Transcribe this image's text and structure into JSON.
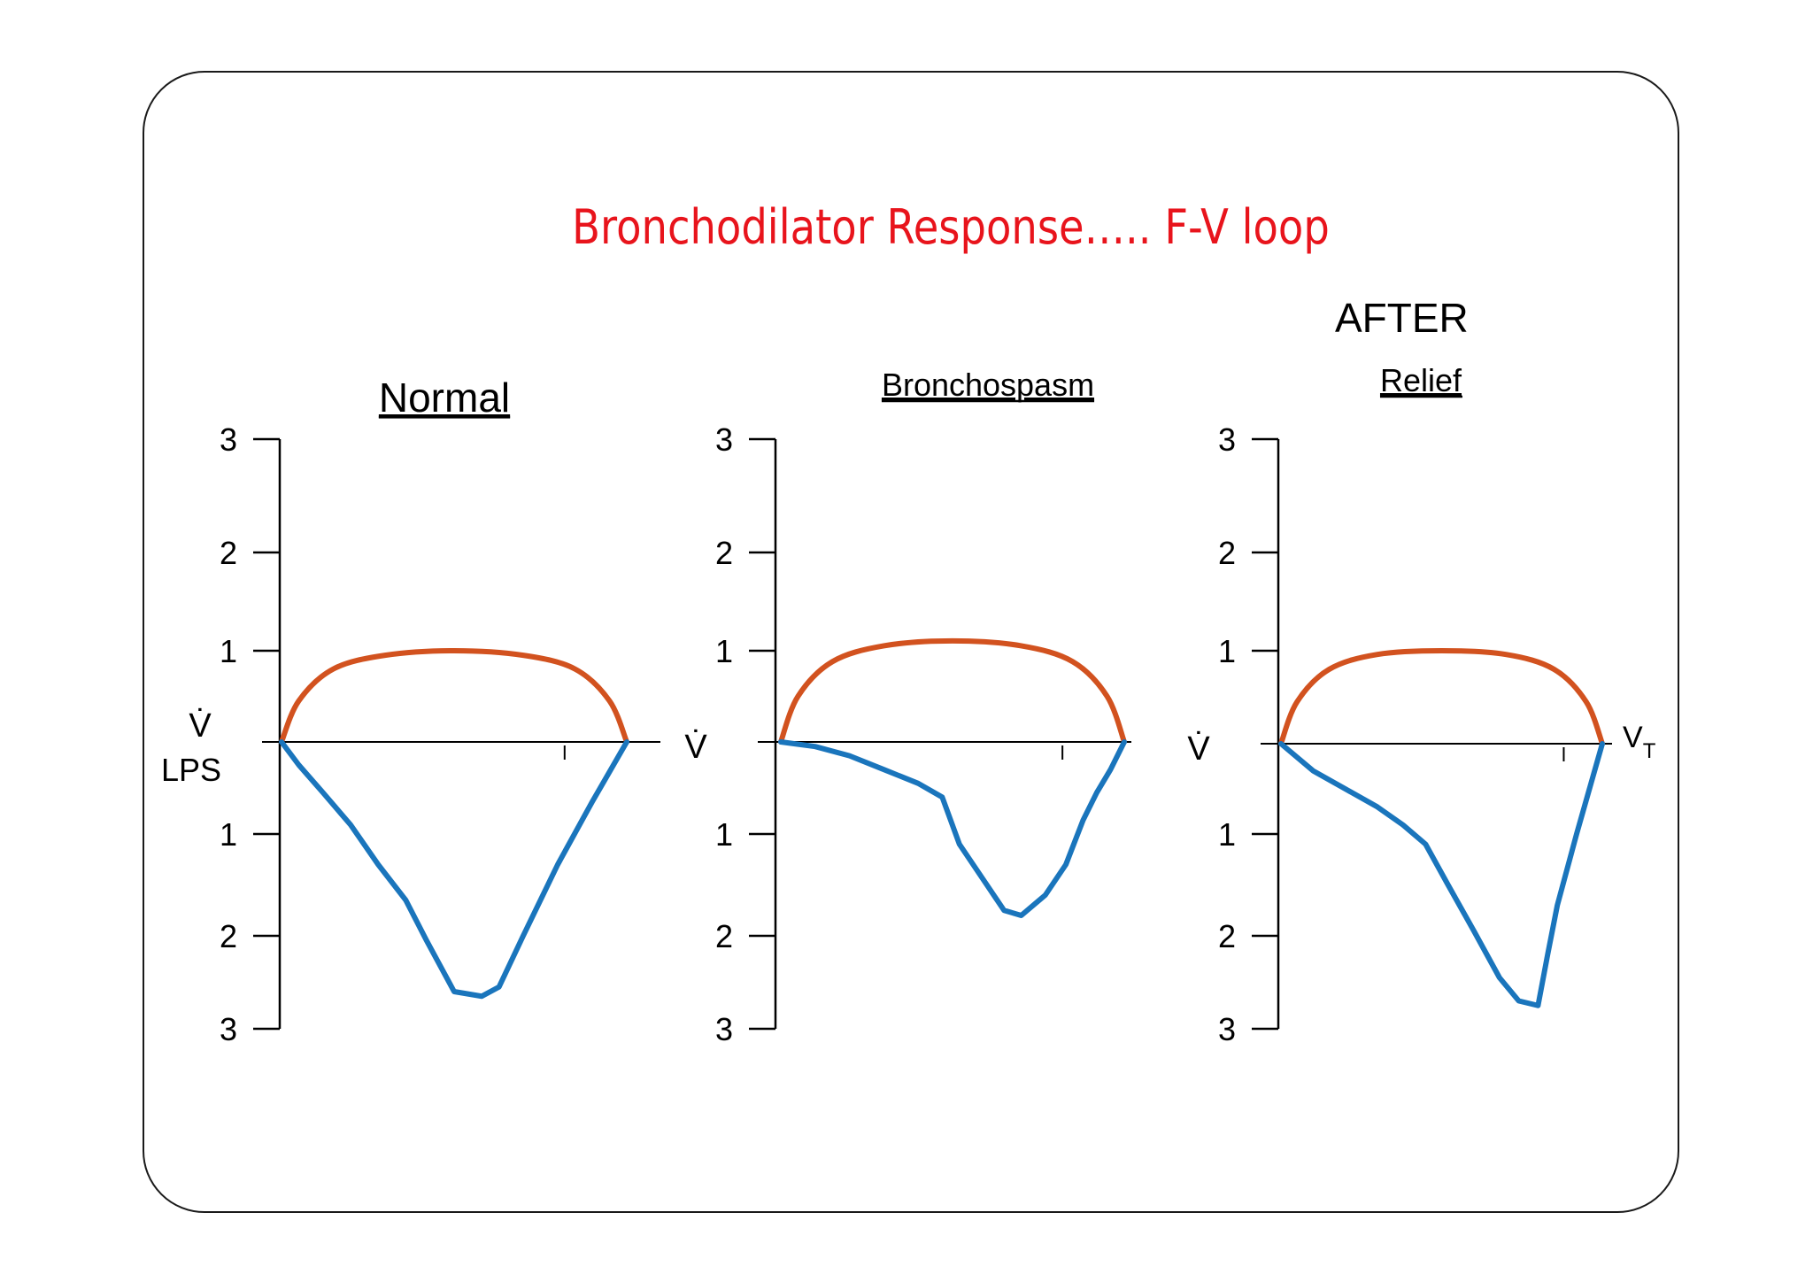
{
  "title": "Bronchodilator Response….. F-V loop",
  "after_label": "AFTER",
  "colors": {
    "title": "#e8141c",
    "inspiratory": "#d2521f",
    "expiratory": "#1a75bc",
    "axis": "#000000"
  },
  "chart_data": [
    {
      "type": "line",
      "title": "Normal",
      "ylabel": "V̇",
      "yunit": "LPS",
      "xlabel": "",
      "yticks_up": [
        1,
        2,
        3
      ],
      "yticks_down": [
        1,
        2,
        3
      ],
      "ylim": [
        -3,
        3
      ],
      "xlim": [
        0,
        1
      ],
      "xtick": 0.82,
      "series": [
        {
          "values_x": [
            0,
            0.05,
            0.15,
            0.3,
            0.5,
            0.7,
            0.85,
            0.95,
            1.0
          ],
          "values_y": [
            0,
            0.45,
            0.8,
            0.95,
            1.0,
            0.95,
            0.8,
            0.45,
            0
          ]
        },
        {
          "values_x": [
            0,
            0.05,
            0.12,
            0.2,
            0.28,
            0.36,
            0.42,
            0.5,
            0.58,
            0.63,
            0.7,
            0.8,
            0.9,
            1.0
          ],
          "values_y": [
            0,
            -0.25,
            -0.55,
            -0.9,
            -1.3,
            -1.65,
            -2.05,
            -2.6,
            -2.65,
            -2.55,
            -2.0,
            -1.3,
            -0.65,
            0
          ]
        }
      ]
    },
    {
      "type": "line",
      "title": "Bronchospasm",
      "ylabel": "V̇",
      "xlabel": "",
      "yticks_up": [
        1,
        2,
        3
      ],
      "yticks_down": [
        1,
        2,
        3
      ],
      "ylim": [
        -3,
        3
      ],
      "xlim": [
        0,
        1
      ],
      "xtick": 0.82,
      "series": [
        {
          "values_x": [
            0,
            0.05,
            0.15,
            0.3,
            0.5,
            0.7,
            0.85,
            0.95,
            1.0
          ],
          "values_y": [
            0,
            0.5,
            0.88,
            1.05,
            1.1,
            1.05,
            0.88,
            0.5,
            0
          ]
        },
        {
          "values_x": [
            0,
            0.1,
            0.2,
            0.3,
            0.4,
            0.47,
            0.52,
            0.6,
            0.65,
            0.7,
            0.77,
            0.83,
            0.88,
            0.92,
            0.96,
            1.0
          ],
          "values_y": [
            0,
            -0.05,
            -0.15,
            -0.3,
            -0.45,
            -0.6,
            -1.1,
            -1.5,
            -1.75,
            -1.8,
            -1.6,
            -1.3,
            -0.85,
            -0.55,
            -0.3,
            0
          ]
        }
      ]
    },
    {
      "type": "line",
      "title": "Relief",
      "ylabel": "V̇",
      "xlabel": "V",
      "xlabel_sub": "T",
      "yticks_up": [
        1,
        2,
        3
      ],
      "yticks_down": [
        1,
        2,
        3
      ],
      "ylim": [
        -3,
        3
      ],
      "xlim": [
        0,
        1
      ],
      "xtick": 0.88,
      "series": [
        {
          "values_x": [
            0,
            0.05,
            0.15,
            0.3,
            0.5,
            0.7,
            0.85,
            0.95,
            1.0
          ],
          "values_y": [
            0,
            0.45,
            0.8,
            0.96,
            1.0,
            0.96,
            0.8,
            0.45,
            0
          ]
        },
        {
          "values_x": [
            0,
            0.1,
            0.2,
            0.3,
            0.38,
            0.45,
            0.52,
            0.6,
            0.68,
            0.74,
            0.8,
            0.83,
            0.86,
            0.92,
            0.96,
            1.0
          ],
          "values_y": [
            0,
            -0.3,
            -0.5,
            -0.7,
            -0.9,
            -1.1,
            -1.5,
            -1.95,
            -2.45,
            -2.7,
            -2.75,
            -2.2,
            -1.7,
            -1.0,
            -0.5,
            0
          ]
        }
      ]
    }
  ]
}
